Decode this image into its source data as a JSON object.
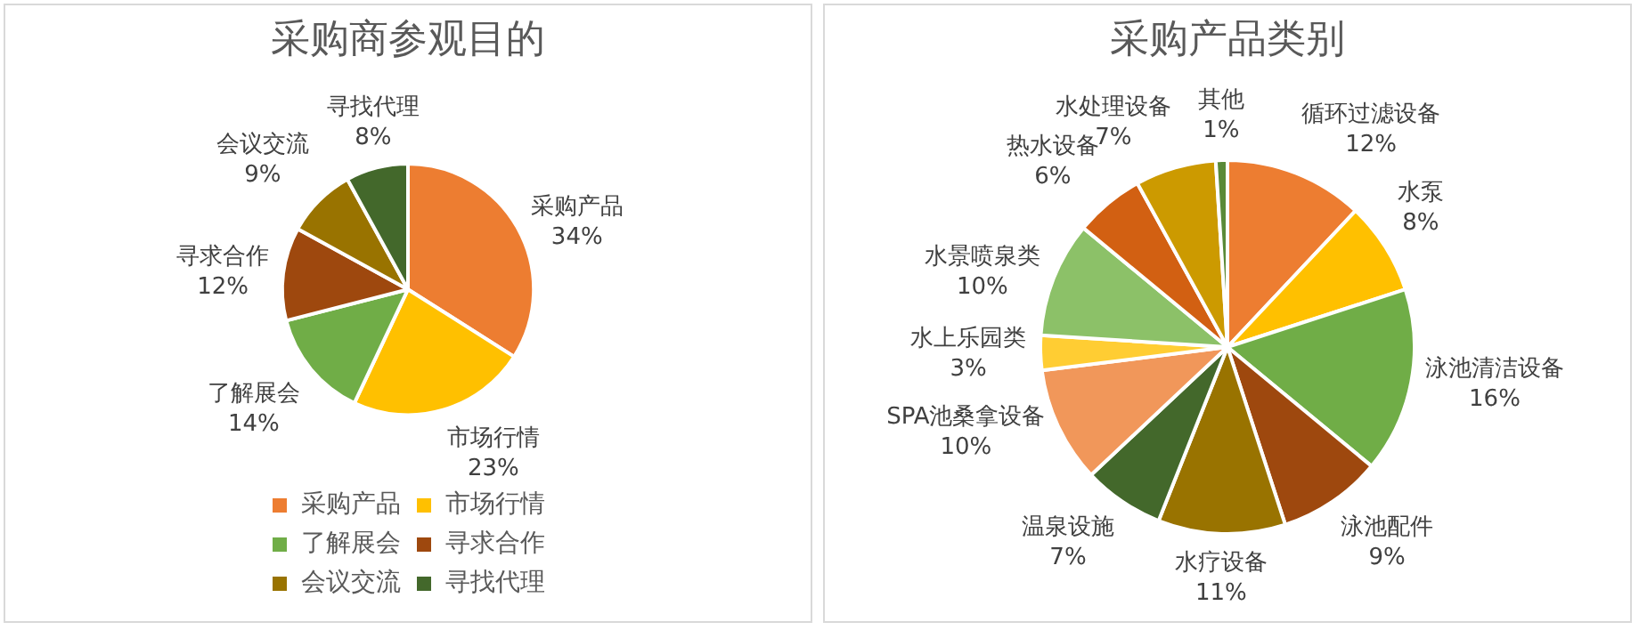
{
  "chart_data": [
    {
      "type": "pie",
      "title": "采购商参观目的",
      "categories": [
        "采购产品",
        "市场行情",
        "了解展会",
        "寻求合作",
        "会议交流",
        "寻找代理"
      ],
      "values": [
        34,
        23,
        14,
        12,
        9,
        8
      ],
      "value_labels": [
        "34%",
        "23%",
        "14%",
        "12%",
        "9%",
        "8%"
      ],
      "colors": [
        "#ed7d31",
        "#ffc000",
        "#70ad47",
        "#9e480e",
        "#997300",
        "#43682b"
      ],
      "legend": "bottom"
    },
    {
      "type": "pie",
      "title": "采购产品类别",
      "categories": [
        "循环过滤设备",
        "水泵",
        "泳池清洁设备",
        "泳池配件",
        "水疗设备",
        "温泉设施",
        "SPA池桑拿设备",
        "水上乐园类",
        "水景喷泉类",
        "热水设备",
        "水处理设备",
        "其他"
      ],
      "values": [
        12,
        8,
        16,
        9,
        11,
        7,
        10,
        3,
        10,
        6,
        7,
        1
      ],
      "value_labels": [
        "12%",
        "8%",
        "16%",
        "9%",
        "11%",
        "7%",
        "10%",
        "3%",
        "10%",
        "6%",
        "7%",
        "1%"
      ],
      "colors": [
        "#ed7d31",
        "#ffc000",
        "#70ad47",
        "#9e480e",
        "#997300",
        "#43682b",
        "#f1975a",
        "#ffcd33",
        "#8cc168",
        "#d26012",
        "#cc9a00",
        "#5a8a38"
      ],
      "legend": false
    }
  ]
}
